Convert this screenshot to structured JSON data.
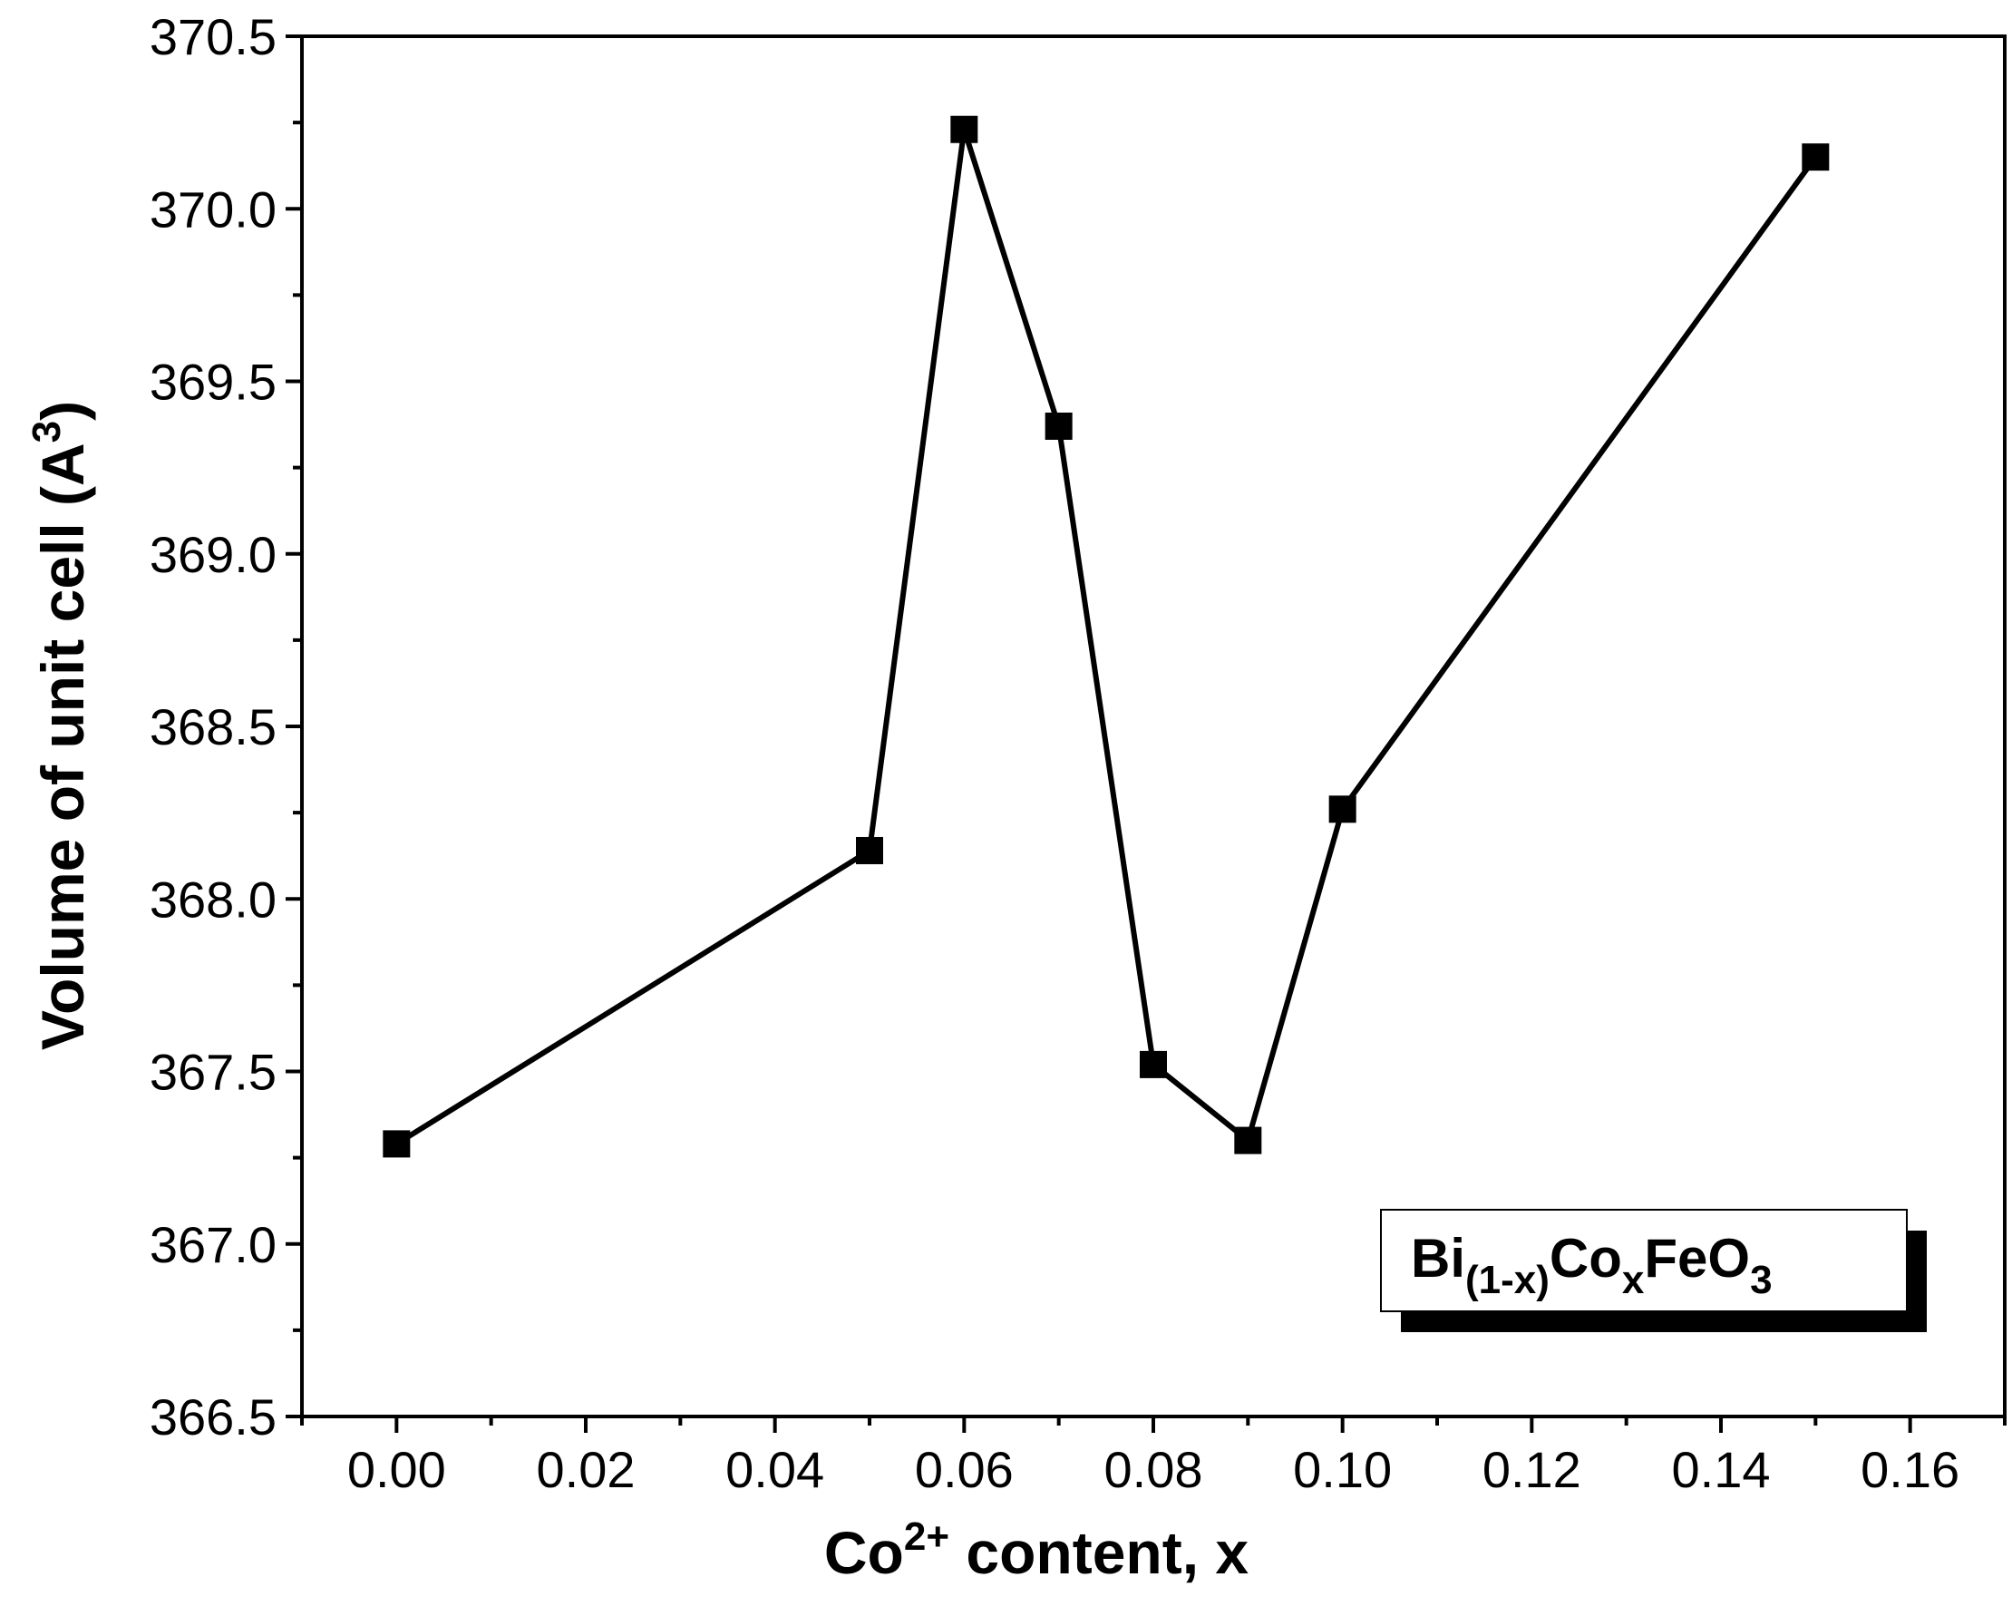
{
  "chart_data": {
    "type": "line",
    "title": "",
    "xlabel": {
      "base": "Co",
      "sup": "2+",
      "rest": " content, x"
    },
    "ylabel": {
      "main": "Volume of unit cell (A",
      "sup": "3",
      "close": ")"
    },
    "xlim": [
      -0.01,
      0.17
    ],
    "ylim": [
      366.5,
      370.5
    ],
    "x_ticks": [
      "0.00",
      "0.02",
      "0.04",
      "0.06",
      "0.08",
      "0.10",
      "0.12",
      "0.14",
      "0.16"
    ],
    "y_ticks": [
      "366.5",
      "367.0",
      "367.5",
      "368.0",
      "368.5",
      "369.0",
      "369.5",
      "370.0",
      "370.5"
    ],
    "grid": false,
    "legend_position": "bottom-right",
    "series": [
      {
        "name": "Bi(1-x)CoxFeO3",
        "marker": "square",
        "color": "#000000",
        "x": [
          0.0,
          0.05,
          0.06,
          0.07,
          0.08,
          0.09,
          0.1,
          0.15
        ],
        "y": [
          367.29,
          368.14,
          370.23,
          369.37,
          367.52,
          367.3,
          368.26,
          370.15
        ]
      }
    ],
    "legend_label": {
      "p1": "Bi",
      "s1": "(1-x)",
      "p2": "Co",
      "s2": "x",
      "p3": "FeO",
      "s3": "3"
    }
  }
}
